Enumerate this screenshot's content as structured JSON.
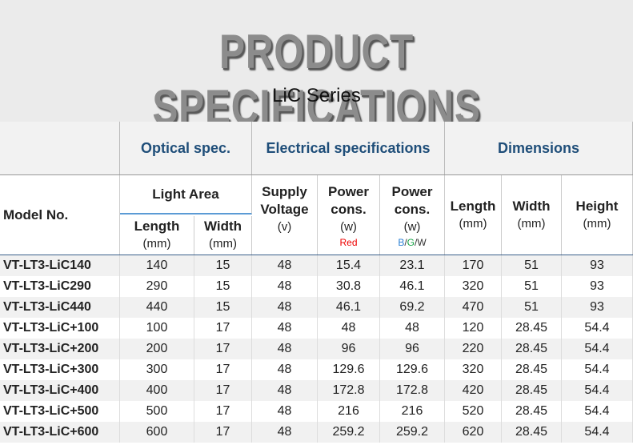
{
  "header": {
    "title": "PRODUCT SPECIFICATIONS",
    "subtitle": "LiC Series"
  },
  "table": {
    "groups": [
      "Optical spec.",
      "Electrical specifications",
      "Dimensions"
    ],
    "model_header": "Model No.",
    "light_area": "Light Area",
    "optical_columns": [
      [
        "Length",
        "(mm)"
      ],
      [
        "Width",
        "(mm)"
      ]
    ],
    "electrical_columns": [
      [
        "Supply",
        "Voltage",
        "(v)"
      ],
      [
        "Power",
        "cons.",
        "(w)"
      ],
      [
        "Power",
        "cons.",
        "(w)"
      ]
    ],
    "power_red_note": "Red",
    "power_bgw_note": [
      "B",
      "/",
      "G",
      "/",
      "W"
    ],
    "dimension_columns": [
      [
        "Length",
        "(mm)"
      ],
      [
        "Width",
        "(mm)"
      ],
      [
        "Height",
        "(mm)"
      ]
    ],
    "rows": [
      [
        "VT-LT3-LiC140",
        "140",
        "15",
        "48",
        "15.4",
        "23.1",
        "170",
        "51",
        "93"
      ],
      [
        "VT-LT3-LiC290",
        "290",
        "15",
        "48",
        "30.8",
        "46.1",
        "320",
        "51",
        "93"
      ],
      [
        "VT-LT3-LiC440",
        "440",
        "15",
        "48",
        "46.1",
        "69.2",
        "470",
        "51",
        "93"
      ],
      [
        "VT-LT3-LiC+100",
        "100",
        "17",
        "48",
        "48",
        "48",
        "120",
        "28.45",
        "54.4"
      ],
      [
        "VT-LT3-LiC+200",
        "200",
        "17",
        "48",
        "96",
        "96",
        "220",
        "28.45",
        "54.4"
      ],
      [
        "VT-LT3-LiC+300",
        "300",
        "17",
        "48",
        "129.6",
        "129.6",
        "320",
        "28.45",
        "54.4"
      ],
      [
        "VT-LT3-LiC+400",
        "400",
        "17",
        "48",
        "172.8",
        "172.8",
        "420",
        "28.45",
        "54.4"
      ],
      [
        "VT-LT3-LiC+500",
        "500",
        "17",
        "48",
        "216",
        "216",
        "520",
        "28.45",
        "54.4"
      ],
      [
        "VT-LT3-LiC+600",
        "600",
        "17",
        "48",
        "259.2",
        "259.2",
        "620",
        "28.45",
        "54.4"
      ]
    ]
  }
}
